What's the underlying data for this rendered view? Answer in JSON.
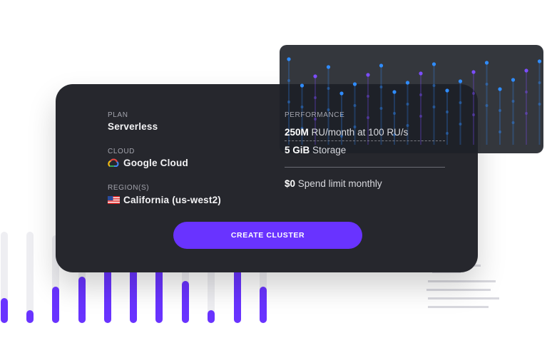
{
  "plan": {
    "label": "PLAN",
    "value": "Serverless"
  },
  "cloud": {
    "label": "CLOUD",
    "value": "Google Cloud"
  },
  "region": {
    "label": "REGION(S)",
    "value": "California (us-west2)"
  },
  "performance": {
    "label": "PERFORMANCE",
    "items": [
      {
        "amount": "250M",
        "text": "RU/month at 100 RU/s"
      },
      {
        "amount": "5 GiB",
        "text": "Storage"
      }
    ]
  },
  "spend": {
    "amount": "$0",
    "text": "Spend limit monthly"
  },
  "button": "CREATE CLUSTER"
}
